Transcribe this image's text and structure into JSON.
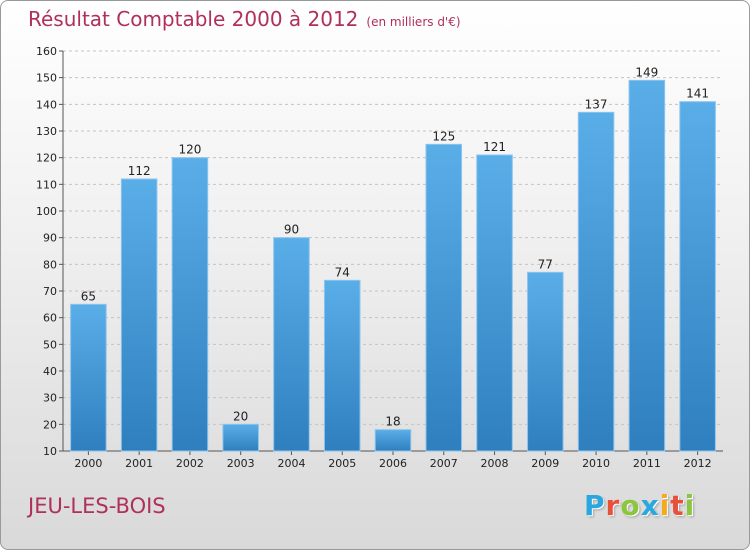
{
  "chart_data": {
    "type": "bar",
    "title": "Résultat Comptable 2000 à 2012",
    "subtitle": "(en milliers d'€)",
    "categories": [
      "2000",
      "2001",
      "2002",
      "2003",
      "2004",
      "2005",
      "2006",
      "2007",
      "2008",
      "2009",
      "2010",
      "2011",
      "2012"
    ],
    "values": [
      65,
      112,
      120,
      20,
      90,
      74,
      18,
      125,
      121,
      77,
      137,
      149,
      141
    ],
    "ylim": [
      10,
      160
    ],
    "yticks": [
      10,
      20,
      30,
      40,
      50,
      60,
      70,
      80,
      90,
      100,
      110,
      120,
      130,
      140,
      150,
      160
    ],
    "grid": true,
    "bar_color": "#4a9ee0",
    "title_color": "#b0305a"
  },
  "location": "JEU-LES-BOIS",
  "logo": {
    "letters": [
      "P",
      "r",
      "o",
      "x",
      "i",
      "t",
      "i"
    ],
    "colors": [
      "#2aa7df",
      "#e8503a",
      "#8cc63f",
      "#2aa7df",
      "#f7a81b",
      "#e8503a",
      "#8cc63f"
    ]
  }
}
